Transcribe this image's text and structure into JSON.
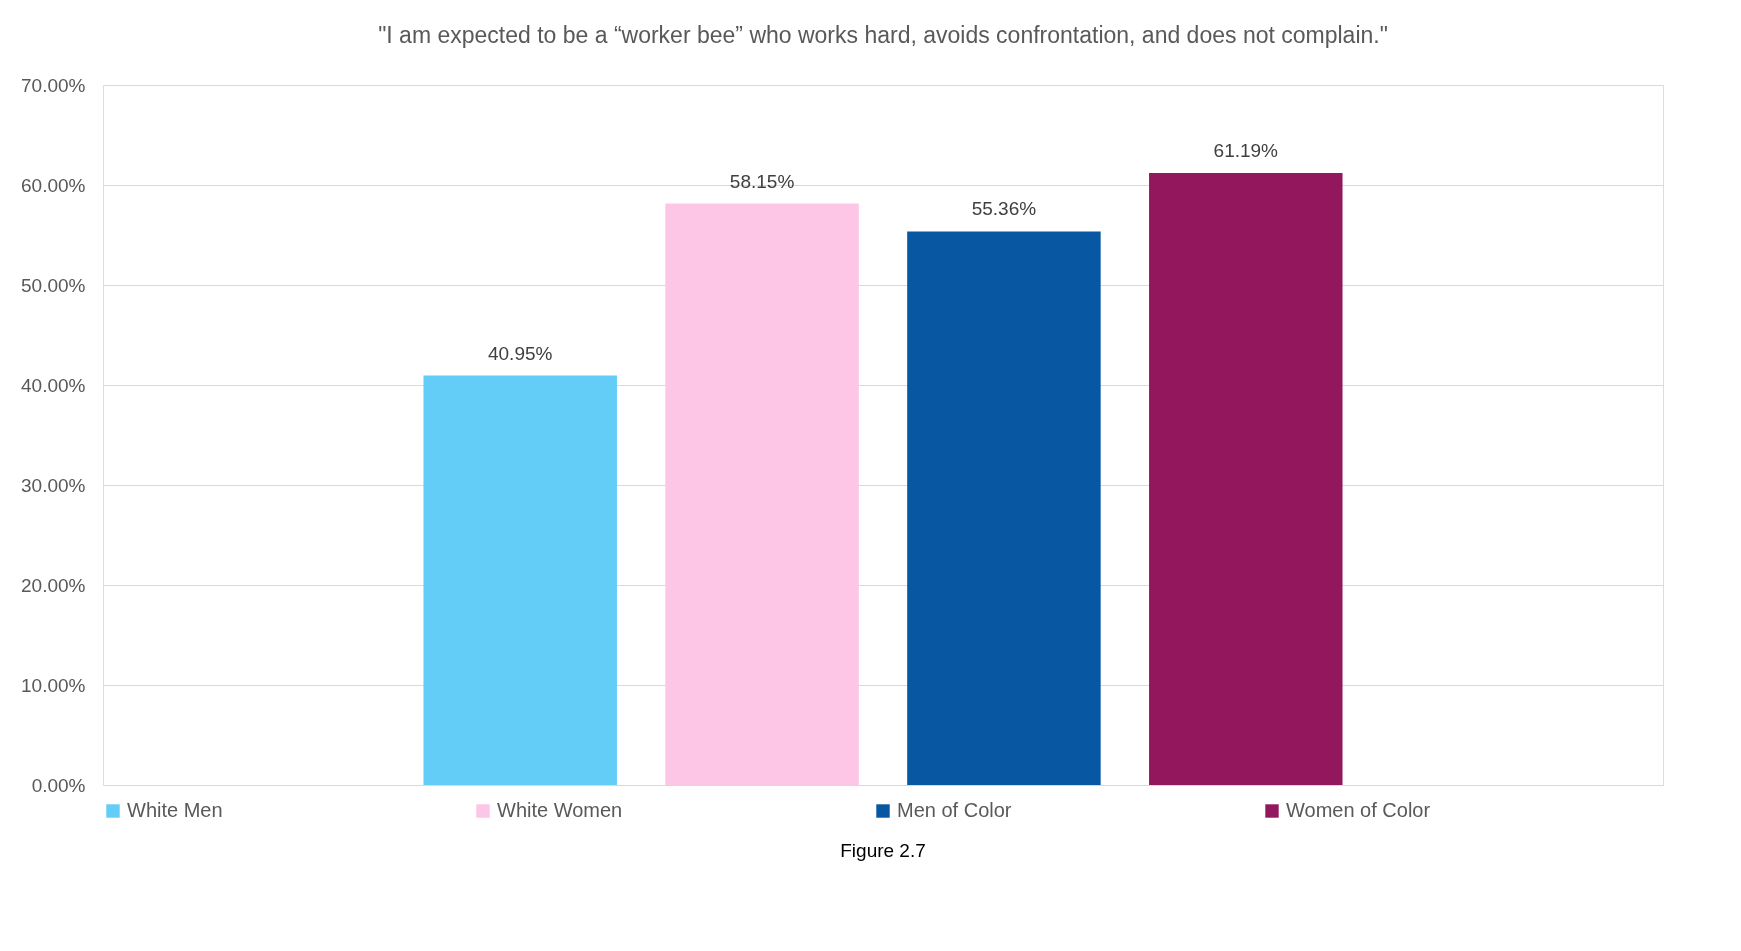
{
  "chart_data": {
    "type": "bar",
    "title": "\"I am expected to be a “worker bee” who works hard, avoids confrontation, and does not complain.\"",
    "categories": [
      null
    ],
    "series": [
      {
        "name": "White Men",
        "color": "#63cdf8",
        "values": [
          40.95
        ],
        "value_labels": [
          "40.95%"
        ]
      },
      {
        "name": "White Women",
        "color": "#fdc5e6",
        "values": [
          58.15
        ],
        "value_labels": [
          "58.15%"
        ]
      },
      {
        "name": "Men of Color",
        "color": "#0757a3",
        "values": [
          55.36
        ],
        "value_labels": [
          "55.36%"
        ]
      },
      {
        "name": "Women of Color",
        "color": "#92175c",
        "values": [
          61.19
        ],
        "value_labels": [
          "61.19%"
        ]
      }
    ],
    "ylim": [
      0,
      70
    ],
    "yticks": [
      {
        "value": 0,
        "label": "0.00%"
      },
      {
        "value": 10,
        "label": "10.00%"
      },
      {
        "value": 20,
        "label": "20.00%"
      },
      {
        "value": 30,
        "label": "30.00%"
      },
      {
        "value": 40,
        "label": "40.00%"
      },
      {
        "value": 50,
        "label": "50.00%"
      },
      {
        "value": 60,
        "label": "60.00%"
      },
      {
        "value": 70,
        "label": "70.00%"
      }
    ],
    "grid": "y",
    "legend": "bottom",
    "annotations": [
      "Figure 2.7"
    ]
  }
}
